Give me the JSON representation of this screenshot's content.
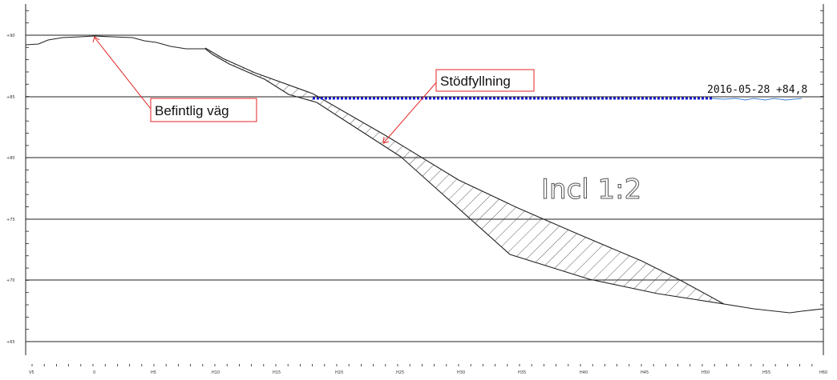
{
  "labels": {
    "existing_road": "Befintlig väg",
    "support_fill": "Stödfyllning",
    "water_level": "2016-05-28 +84,8",
    "inclination": "Incl 1:2"
  },
  "axes": {
    "y_tick_labels": [
      "+90",
      "+85",
      "+80",
      "+75",
      "+70",
      "+65"
    ],
    "x_tick_labels": [
      "V5",
      "0",
      "H5",
      "H10",
      "H15",
      "H20",
      "H25",
      "H30",
      "H35",
      "H40",
      "H45",
      "H50",
      "H55",
      "H60"
    ]
  },
  "colors": {
    "callout": "#e32626",
    "water_line": "#1a1ad6",
    "water_ripple": "#3a7fd6",
    "profile": "#222222",
    "grid": "#222222"
  }
}
